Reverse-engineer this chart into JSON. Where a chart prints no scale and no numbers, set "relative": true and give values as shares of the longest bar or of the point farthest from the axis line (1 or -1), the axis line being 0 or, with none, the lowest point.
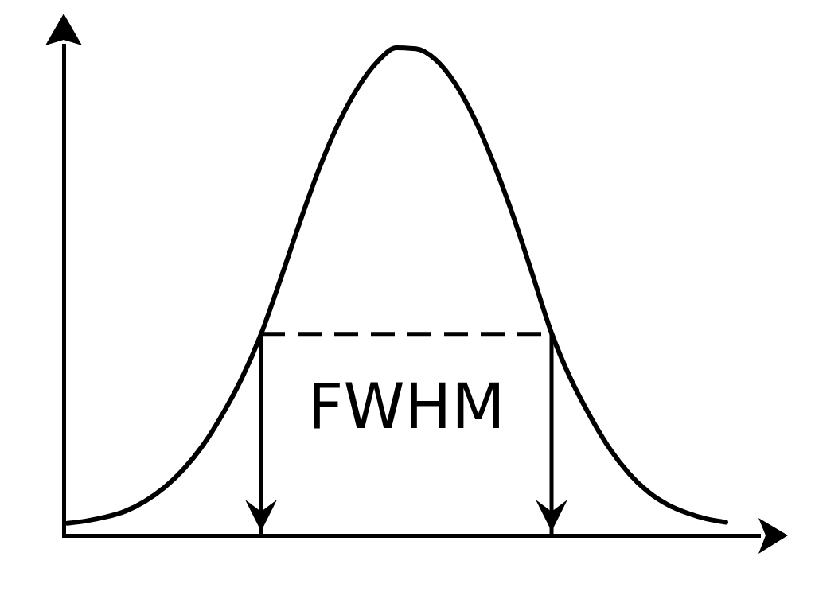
{
  "chart_data": {
    "type": "line",
    "relative": true,
    "categories": [
      null,
      null,
      null,
      null,
      null,
      null,
      null,
      null,
      null,
      null,
      null,
      null,
      null,
      null,
      null,
      null,
      null,
      null,
      null,
      null,
      null,
      null,
      null,
      null,
      null,
      null,
      null,
      null,
      null,
      null,
      null,
      null,
      null,
      null,
      null
    ],
    "series": [
      {
        "color": "#000000",
        "values": [
          0.025,
          0.03,
          0.038,
          0.05,
          0.07,
          0.098,
          0.136,
          0.185,
          0.248,
          0.322,
          0.413,
          0.525,
          0.642,
          0.752,
          0.845,
          0.918,
          0.971,
          1,
          0.998,
          0.976,
          0.928,
          0.856,
          0.764,
          0.657,
          0.537,
          0.415,
          0.32,
          0.244,
          0.178,
          0.127,
          0.089,
          0.063,
          0.046,
          0.034,
          0.027
        ]
      },
      {
        "color": "#000000",
        "line_style": "dashed",
        "values": [
          null,
          null,
          null,
          null,
          null,
          null,
          null,
          null,
          null,
          null,
          0.413,
          0.413,
          0.413,
          0.413,
          0.413,
          0.413,
          0.413,
          0.413,
          0.413,
          0.413,
          0.413,
          0.413,
          0.413,
          0.413,
          0.413,
          0.413,
          null,
          null,
          null,
          null,
          null,
          null,
          null,
          null,
          null
        ]
      }
    ],
    "annotations": [
      "FWHM"
    ]
  }
}
